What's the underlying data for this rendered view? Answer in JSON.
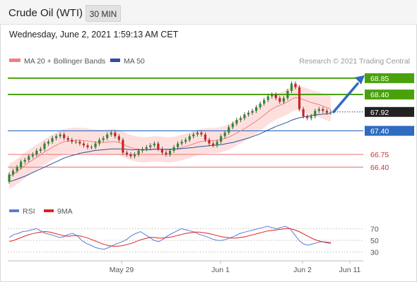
{
  "header": {
    "title": "Crude Oil (WTI)",
    "timeframe": "30 MIN"
  },
  "datetime": "Wednesday, June 2, 2021 1:59:13 AM CET",
  "legend": {
    "ma20_label": "MA 20 + Bollinger Bands",
    "ma50_label": "MA 50",
    "ma20_color": "#f08080",
    "ma50_color": "#2e4f9a"
  },
  "credit": "Research © 2021 Trading Central",
  "colors": {
    "resistance": "#4aa10c",
    "pivot": "#2f6cc0",
    "support": "#f08080",
    "current": "#222222",
    "candle_up": "#2e8b2e",
    "candle_down": "#cc2222",
    "bands_fill": "#fde0de",
    "rsi": "#5b7bd5",
    "rsi_ma": "#e02020",
    "arrow": "#2f6cc0"
  },
  "chart_data": [
    {
      "type": "candlestick",
      "title": "Crude Oil (WTI)",
      "timeframe": "30 MIN",
      "x_ticks": [
        "May 29",
        "Jun 1",
        "Jun 2",
        "Jun 11"
      ],
      "ylim": [
        65.8,
        69.1
      ],
      "levels": [
        {
          "label": "68.85",
          "value": 68.85,
          "kind": "resistance"
        },
        {
          "label": "68.40",
          "value": 68.4,
          "kind": "resistance"
        },
        {
          "label": "67.92",
          "value": 67.92,
          "kind": "current"
        },
        {
          "label": "67.40",
          "value": 67.4,
          "kind": "pivot"
        },
        {
          "label": "66.75",
          "value": 66.75,
          "kind": "support"
        },
        {
          "label": "66.40",
          "value": 66.4,
          "kind": "support"
        }
      ],
      "series": [
        {
          "name": "MA 20 + Bollinger Bands"
        },
        {
          "name": "MA 50"
        }
      ],
      "close": [
        66.2,
        66.3,
        66.4,
        66.55,
        66.6,
        66.7,
        66.75,
        66.85,
        66.9,
        67.05,
        67.1,
        67.2,
        67.25,
        67.3,
        67.2,
        67.15,
        67.1,
        67.1,
        67.05,
        67.0,
        66.95,
        66.95,
        67.05,
        67.15,
        67.2,
        67.3,
        67.35,
        67.25,
        67.15,
        66.8,
        66.75,
        66.7,
        66.75,
        66.85,
        66.9,
        66.95,
        67.0,
        67.05,
        66.9,
        66.8,
        66.75,
        66.85,
        66.95,
        67.05,
        67.1,
        67.15,
        67.25,
        67.3,
        67.35,
        67.3,
        67.15,
        67.05,
        67.0,
        67.1,
        67.25,
        67.35,
        67.5,
        67.6,
        67.7,
        67.75,
        67.85,
        67.9,
        67.95,
        68.05,
        68.15,
        68.25,
        68.35,
        68.4,
        68.3,
        68.2,
        68.3,
        68.5,
        68.7,
        68.6,
        68.0,
        67.8,
        67.75,
        67.8,
        67.95,
        68.0,
        67.95,
        67.9,
        67.92
      ],
      "open": [
        66.0,
        66.2,
        66.3,
        66.4,
        66.55,
        66.6,
        66.7,
        66.75,
        66.85,
        66.9,
        67.05,
        67.1,
        67.2,
        67.25,
        67.3,
        67.2,
        67.15,
        67.1,
        67.1,
        67.05,
        67.0,
        66.95,
        66.95,
        67.05,
        67.15,
        67.2,
        67.3,
        67.35,
        67.25,
        67.15,
        66.8,
        66.75,
        66.7,
        66.75,
        66.85,
        66.9,
        66.95,
        67.0,
        67.05,
        66.9,
        66.8,
        66.75,
        66.85,
        66.95,
        67.05,
        67.1,
        67.15,
        67.25,
        67.3,
        67.35,
        67.3,
        67.15,
        67.05,
        67.0,
        67.1,
        67.25,
        67.35,
        67.5,
        67.6,
        67.7,
        67.75,
        67.85,
        67.9,
        67.95,
        68.05,
        68.15,
        68.25,
        68.35,
        68.4,
        68.3,
        68.2,
        68.3,
        68.5,
        68.7,
        68.6,
        68.0,
        67.8,
        67.75,
        67.8,
        67.95,
        68.0,
        67.95,
        67.9
      ],
      "ma20": [
        66.15,
        66.2,
        66.28,
        66.36,
        66.45,
        66.53,
        66.6,
        66.67,
        66.74,
        66.82,
        66.88,
        66.95,
        67.0,
        67.06,
        67.1,
        67.12,
        67.13,
        67.14,
        67.14,
        67.13,
        67.12,
        67.1,
        67.09,
        67.08,
        67.08,
        67.09,
        67.1,
        67.1,
        67.08,
        67.03,
        66.98,
        66.94,
        66.91,
        66.89,
        66.88,
        66.88,
        66.89,
        66.9,
        66.9,
        66.89,
        66.88,
        66.88,
        66.89,
        66.91,
        66.94,
        66.97,
        67.0,
        67.04,
        67.08,
        67.11,
        67.12,
        67.13,
        67.13,
        67.14,
        67.16,
        67.19,
        67.23,
        67.28,
        67.34,
        67.4,
        67.46,
        67.53,
        67.6,
        67.67,
        67.75,
        67.83,
        67.92,
        68.0,
        68.06,
        68.1,
        68.15,
        68.2,
        68.27,
        68.32,
        68.3,
        68.26,
        68.22,
        68.18,
        68.15,
        68.12,
        68.08,
        68.04,
        68.0
      ],
      "ma50": [
        66.0,
        66.03,
        66.07,
        66.11,
        66.15,
        66.2,
        66.25,
        66.3,
        66.35,
        66.4,
        66.45,
        66.5,
        66.55,
        66.6,
        66.65,
        66.69,
        66.72,
        66.75,
        66.78,
        66.8,
        66.82,
        66.84,
        66.86,
        66.87,
        66.88,
        66.89,
        66.9,
        66.9,
        66.9,
        66.9,
        66.89,
        66.88,
        66.88,
        66.88,
        66.88,
        66.88,
        66.88,
        66.89,
        66.89,
        66.89,
        66.89,
        66.89,
        66.9,
        66.9,
        66.91,
        66.92,
        66.93,
        66.94,
        66.96,
        66.97,
        66.98,
        66.99,
        67.0,
        67.01,
        67.02,
        67.04,
        67.06,
        67.08,
        67.11,
        67.14,
        67.17,
        67.2,
        67.24,
        67.28,
        67.32,
        67.37,
        67.42,
        67.47,
        67.52,
        67.56,
        67.6,
        67.64,
        67.69,
        67.73,
        67.76,
        67.78,
        67.8,
        67.82,
        67.84,
        67.85,
        67.86,
        67.87,
        67.88
      ],
      "band_width": 0.35
    },
    {
      "type": "line",
      "title": "",
      "ylim": [
        20,
        80
      ],
      "y_ticks": [
        70,
        50,
        30
      ],
      "series": [
        {
          "name": "RSI",
          "values": [
            55,
            60,
            62,
            65,
            66,
            68,
            70,
            66,
            62,
            60,
            58,
            55,
            56,
            60,
            62,
            58,
            50,
            45,
            42,
            38,
            36,
            35,
            38,
            42,
            45,
            48,
            52,
            58,
            62,
            65,
            60,
            55,
            50,
            48,
            52,
            58,
            62,
            66,
            70,
            68,
            66,
            64,
            60,
            58,
            55,
            52,
            50,
            50,
            52,
            55,
            58,
            62,
            64,
            66,
            68,
            70,
            72,
            74,
            72,
            70,
            72,
            74,
            70,
            60,
            50,
            44,
            42,
            44,
            46,
            48,
            46,
            45
          ]
        },
        {
          "name": "9MA",
          "values": [
            48,
            50,
            53,
            56,
            59,
            61,
            63,
            64,
            65,
            64,
            62,
            60,
            58,
            57,
            58,
            58,
            57,
            55,
            52,
            49,
            46,
            43,
            41,
            40,
            40,
            41,
            43,
            45,
            48,
            51,
            53,
            55,
            55,
            54,
            54,
            55,
            56,
            58,
            60,
            62,
            63,
            64,
            64,
            63,
            62,
            60,
            58,
            56,
            55,
            54,
            54,
            55,
            56,
            58,
            60,
            62,
            64,
            66,
            67,
            68,
            69,
            70,
            70,
            68,
            65,
            61,
            57,
            53,
            50,
            48,
            47,
            46
          ]
        }
      ]
    }
  ]
}
